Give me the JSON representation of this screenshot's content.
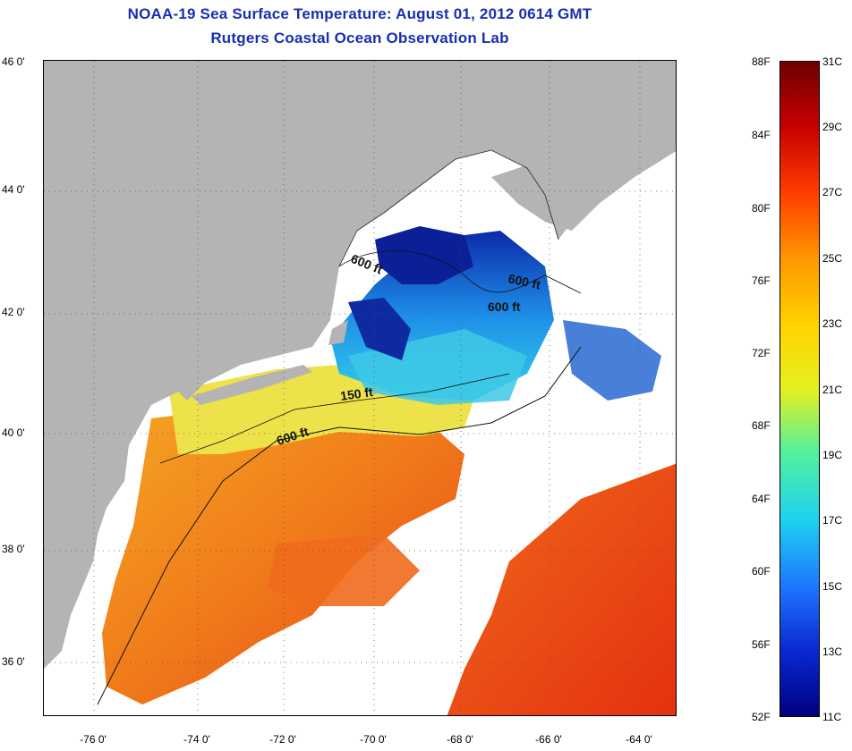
{
  "header": {
    "title": "NOAA-19 Sea Surface Temperature:  August 01, 2012 0614 GMT",
    "subtitle": "Rutgers Coastal Ocean Observation Lab"
  },
  "map": {
    "lat_labels": [
      "46 0'",
      "44 0'",
      "42 0'",
      "40 0'",
      "38 0'",
      "36 0'"
    ],
    "lon_labels": [
      "-76 0'",
      "-74 0'",
      "-72 0'",
      "-70 0'",
      "-68 0'",
      "-66 0'",
      "-64 0'"
    ],
    "contour_labels": [
      "600 ft",
      "600 ft",
      "600 ft",
      "150 ft",
      "600 ft"
    ],
    "colors": {
      "land": "#b4b4b4",
      "cloud": "#ffffff",
      "cold": "#0a1e8c",
      "cool": "#27c6f0",
      "mild": "#e6e632",
      "warm": "#f28a1a",
      "hot": "#e83212"
    }
  },
  "colorbar": {
    "fahrenheit_labels": [
      "88F",
      "84F",
      "80F",
      "76F",
      "72F",
      "68F",
      "64F",
      "60F",
      "56F",
      "52F"
    ],
    "celsius_labels": [
      "31C",
      "29C",
      "27C",
      "25C",
      "23C",
      "21C",
      "19C",
      "17C",
      "15C",
      "13C",
      "11C"
    ],
    "range_f": [
      52,
      88
    ],
    "range_c": [
      11,
      31
    ],
    "gradient": [
      "#6e0000",
      "#c80000",
      "#ff3c00",
      "#ff9600",
      "#ffd200",
      "#e6f01e",
      "#50f0a0",
      "#1ed2f0",
      "#1e78ff",
      "#0a28d2",
      "#00007f"
    ]
  }
}
